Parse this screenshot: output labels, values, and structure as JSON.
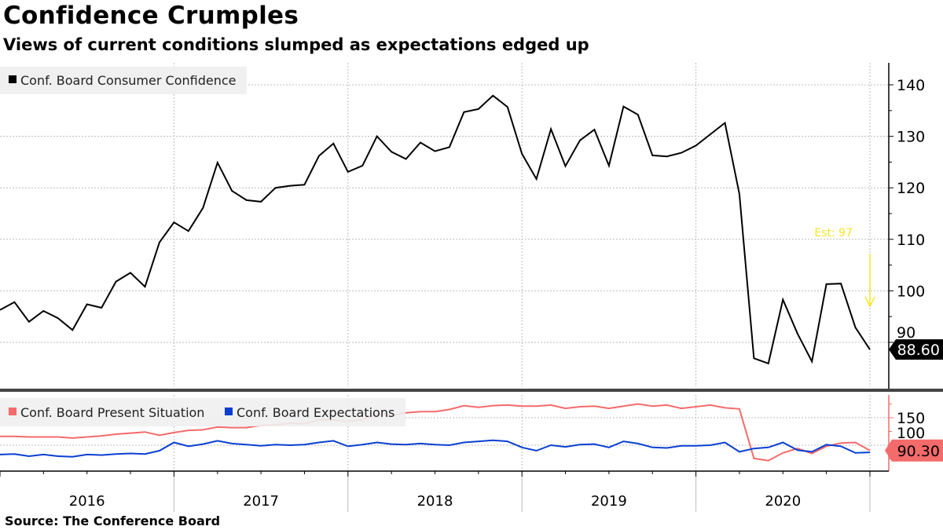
{
  "header": {
    "title": "Confidence Crumples",
    "subtitle": "Views of current conditions slumped as expectations edged up"
  },
  "footer": {
    "source": "Source: The Conference Board"
  },
  "colors": {
    "confidence": "#000000",
    "present": "#f46b6b",
    "expectations": "#0a3fd1",
    "estimate": "#f5e625",
    "legend_bg": "#f0f0f0"
  },
  "chart_data": [
    {
      "type": "line",
      "title": "Conf. Board Consumer Confidence",
      "x_start": "Dec 2015",
      "x_end": "Dec 2020",
      "frequency": "monthly",
      "x_tick_labels": [
        "2016",
        "2017",
        "2018",
        "2019",
        "2020"
      ],
      "ylim": [
        80,
        143
      ],
      "y_ticks": [
        90,
        100,
        110,
        120,
        130,
        140
      ],
      "y_tick_labels": [
        "90",
        "100",
        "110",
        "120",
        "130",
        "140"
      ],
      "grid": true,
      "legend": "top-left",
      "series": [
        {
          "name": "Conf. Board Consumer Confidence",
          "values": [
            96.3,
            97.8,
            94.0,
            96.1,
            94.7,
            92.4,
            97.4,
            96.7,
            101.8,
            103.5,
            100.8,
            109.4,
            113.3,
            111.6,
            116.1,
            124.9,
            119.4,
            117.6,
            117.3,
            120.0,
            120.4,
            120.6,
            126.2,
            128.6,
            123.1,
            124.3,
            130.0,
            127.0,
            125.6,
            128.8,
            127.1,
            127.9,
            134.7,
            135.3,
            137.9,
            135.7,
            126.6,
            121.7,
            131.4,
            124.2,
            129.2,
            131.3,
            124.3,
            135.8,
            134.2,
            126.3,
            126.1,
            126.8,
            128.2,
            130.4,
            132.6,
            118.8,
            86.9,
            85.9,
            98.3,
            91.7,
            86.3,
            101.3,
            101.4,
            92.9,
            88.6
          ]
        }
      ],
      "last_value_label": "88.60",
      "annotation": {
        "text": "Est: 97",
        "value": 97
      }
    },
    {
      "type": "line",
      "ylim": [
        53,
        191
      ],
      "y_ticks": [
        100,
        150
      ],
      "y_tick_labels": [
        "100",
        "150"
      ],
      "grid": true,
      "legend": "top-left",
      "series": [
        {
          "name": "Conf. Board Present Situation",
          "values": [
            116,
            116,
            115,
            115,
            115,
            113,
            115,
            117,
            120,
            122,
            124,
            118,
            123,
            127,
            128,
            133,
            132,
            132,
            136,
            137,
            140,
            139,
            146,
            146,
            143,
            146,
            157,
            154,
            159,
            161,
            161,
            165,
            172,
            169,
            172,
            173,
            171,
            171,
            173,
            167,
            170,
            171,
            167,
            171,
            175,
            171,
            173,
            167,
            170,
            173,
            168,
            166,
            76,
            72,
            86,
            94,
            85,
            98,
            104,
            105,
            90.3
          ]
        },
        {
          "name": "Conf. Board Expectations",
          "values": [
            83,
            84,
            80,
            83,
            80,
            79,
            83,
            82,
            84,
            85,
            84,
            90,
            105,
            98,
            102,
            108,
            103,
            101,
            99,
            101,
            100,
            101,
            105,
            108,
            98,
            101,
            105,
            102,
            101,
            103,
            101,
            100,
            105,
            107,
            109,
            107,
            96,
            90,
            100,
            97,
            101,
            102,
            96,
            107,
            103,
            96,
            95,
            99,
            99,
            100,
            105,
            88,
            94,
            96,
            105,
            91,
            88,
            101,
            98,
            86,
            87
          ]
        }
      ],
      "last_value_label": "90.30"
    }
  ]
}
